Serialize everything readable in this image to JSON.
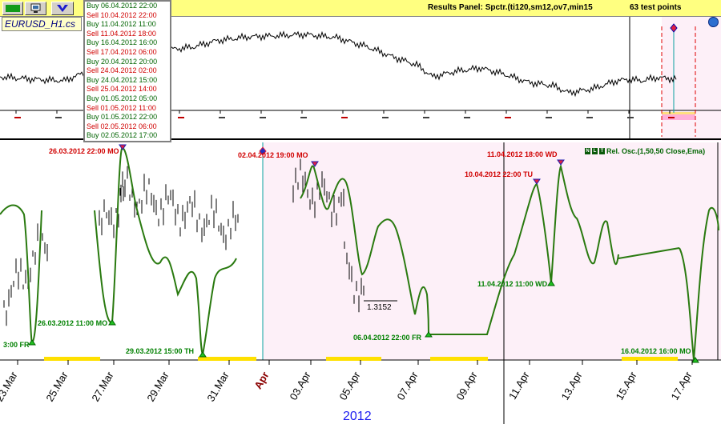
{
  "toolbar": {
    "results_panel": "Results Panel: Spctr.(ti120,sm12,ov7,min15",
    "test_points": "63 test points",
    "symbol": "EURUSD_H1.cs"
  },
  "colors": {
    "accent": "#ffff80",
    "buy": "#008000",
    "sell": "#d00000",
    "oscillator": "#2a7a10",
    "future_zone": "#fdf0f8",
    "year_label": "#1c1cf0"
  },
  "icons": [
    "color-swatch-icon",
    "monitor-icon",
    "chevron-down-icon",
    "globe-icon"
  ],
  "signals": [
    {
      "text": "Buy 06.04.2012  22:00",
      "type": "buy"
    },
    {
      "text": "Sell 10.04.2012  22:00",
      "type": "sell"
    },
    {
      "text": "Buy 11.04.2012  11:00",
      "type": "buy"
    },
    {
      "text": "Sell 11.04.2012  18:00",
      "type": "sell"
    },
    {
      "text": "Buy 16.04.2012  16:00",
      "type": "buy"
    },
    {
      "text": "Sell 17.04.2012  06:00",
      "type": "sell"
    },
    {
      "text": "Buy 20.04.2012  20:00",
      "type": "buy"
    },
    {
      "text": "Sell 24.04.2012  02:00",
      "type": "sell"
    },
    {
      "text": "Buy 24.04.2012  15:00",
      "type": "buy"
    },
    {
      "text": "Sell 25.04.2012  14:00",
      "type": "sell"
    },
    {
      "text": "Buy 01.05.2012  05:00",
      "type": "buy"
    },
    {
      "text": "Sell 01.05.2012  11:00",
      "type": "sell"
    },
    {
      "text": "Buy 01.05.2012  22:00",
      "type": "buy"
    },
    {
      "text": "Sell 02.05.2012  06:00",
      "type": "sell"
    },
    {
      "text": "Buy 02.05.2012  17:00",
      "type": "buy"
    }
  ],
  "oscillator": {
    "label": "Rel. Osc.(1,50,50 Close,Ema)",
    "label_icons": [
      "N",
      "L",
      "T"
    ]
  },
  "price_marker": "1.3152",
  "annotations": [
    {
      "text": "26.03.2012  22:00 MO",
      "color": "red"
    },
    {
      "text": "02.04.2012  19:00 MO",
      "color": "red"
    },
    {
      "text": "11.04.2012  18:00 WD",
      "color": "red"
    },
    {
      "text": "10.04.2012  22:00 TU",
      "color": "red"
    },
    {
      "text": "26.03.2012  11:00 MO",
      "color": "green"
    },
    {
      "text": "3:00 FR",
      "color": "green"
    },
    {
      "text": "29.03.2012  15:00 TH",
      "color": "green"
    },
    {
      "text": "06.04.2012  22:00 FR",
      "color": "green"
    },
    {
      "text": "11.04.2012  11:00 WD",
      "color": "green"
    },
    {
      "text": "16.04.2012  16:00 MO",
      "color": "green"
    }
  ],
  "x_axis": {
    "ticks": [
      "23.Mar",
      "25.Mar",
      "27.Mar",
      "29.Mar",
      "31.Mar",
      "Apr",
      "03.Apr",
      "05.Apr",
      "07.Apr",
      "09.Apr",
      "11.Apr",
      "13.Apr",
      "15.Apr",
      "17.Apr"
    ],
    "year": "2012"
  }
}
